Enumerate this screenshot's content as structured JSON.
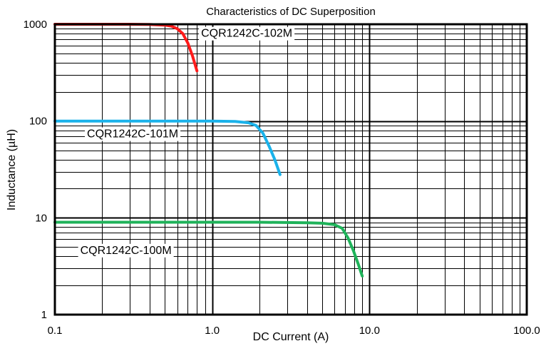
{
  "chart_data": {
    "type": "line",
    "title": "Characteristics of DC Superposition",
    "xlabel": "DC Current (A)",
    "ylabel": "Inductance (µH)",
    "x_scale": "log",
    "y_scale": "log",
    "xlim": [
      0.1,
      100
    ],
    "ylim": [
      1,
      1000
    ],
    "x_tick_labels": [
      "0.1",
      "1.0",
      "10.0",
      "100.0"
    ],
    "y_tick_labels": [
      "1",
      "10",
      "100",
      "1000"
    ],
    "grid": true,
    "series": [
      {
        "name": "CQR1242C-102M",
        "color": "#ff1a1a",
        "x": [
          0.1,
          0.2,
          0.3,
          0.4,
          0.5,
          0.55,
          0.6,
          0.65,
          0.7,
          0.75,
          0.8
        ],
        "y": [
          1000,
          1000,
          1000,
          995,
          980,
          955,
          900,
          800,
          640,
          470,
          330
        ]
      },
      {
        "name": "CQR1242C-101M",
        "color": "#1ab2ea",
        "x": [
          0.1,
          0.5,
          1.0,
          1.4,
          1.7,
          1.9,
          2.1,
          2.3,
          2.5,
          2.7
        ],
        "y": [
          100,
          100,
          100,
          99,
          96,
          90,
          75,
          55,
          40,
          28
        ]
      },
      {
        "name": "CQR1242C-100M",
        "color": "#1fb35a",
        "x": [
          0.1,
          1.0,
          2.0,
          4.0,
          5.0,
          6.0,
          6.7,
          7.3,
          7.9,
          8.5,
          9.0
        ],
        "y": [
          9,
          9,
          9,
          8.9,
          8.8,
          8.5,
          7.8,
          6.2,
          4.6,
          3.3,
          2.5
        ]
      }
    ]
  }
}
